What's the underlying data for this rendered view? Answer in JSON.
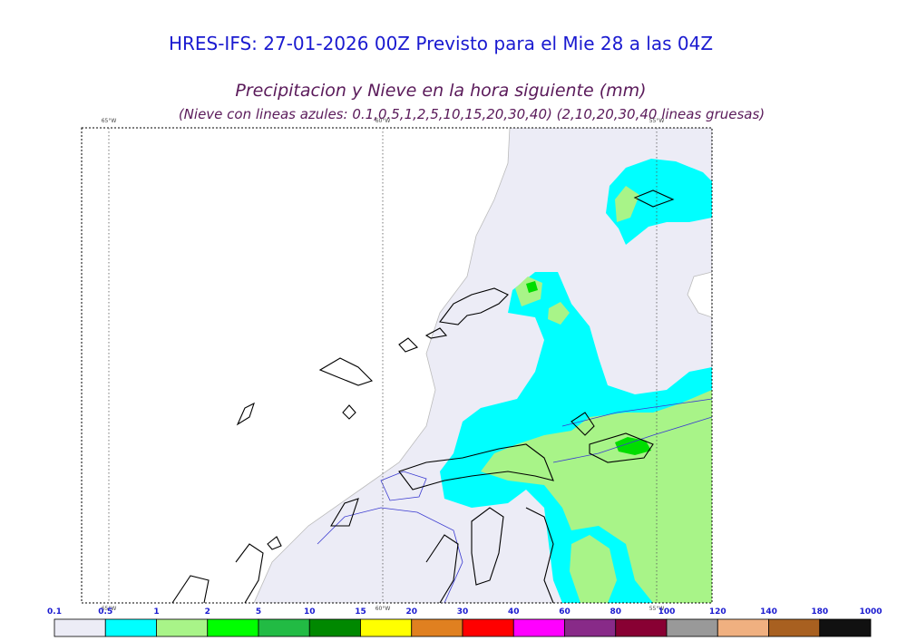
{
  "title": "HRES-IFS: 27-01-2026 00Z Previsto para el Mie 28 a las 04Z",
  "subtitle": "Precipitacion y Nieve en la hora siguiente (mm)",
  "note": "(Nieve con lineas azules: 0.1,0.5,1,2,5,10,15,20,30,40)  (2,10,20,30,40 lineas gruesas)",
  "longitude_labels": [
    "65°W",
    "60°W",
    "55°W"
  ],
  "colorbar": {
    "labels": [
      0.1,
      0.5,
      1,
      2,
      5,
      10,
      15,
      20,
      30,
      40,
      60,
      80,
      100,
      120,
      140,
      180,
      1000
    ],
    "colors": [
      "#ececf6",
      "#00ffff",
      "#a8f488",
      "#00ff00",
      "#22bb44",
      "#008800",
      "#ffff00",
      "#e08020",
      "#ff0000",
      "#ff00ff",
      "#882a88",
      "#880033",
      "#999999",
      "#f0b080",
      "#a86020",
      "#111111"
    ]
  }
}
